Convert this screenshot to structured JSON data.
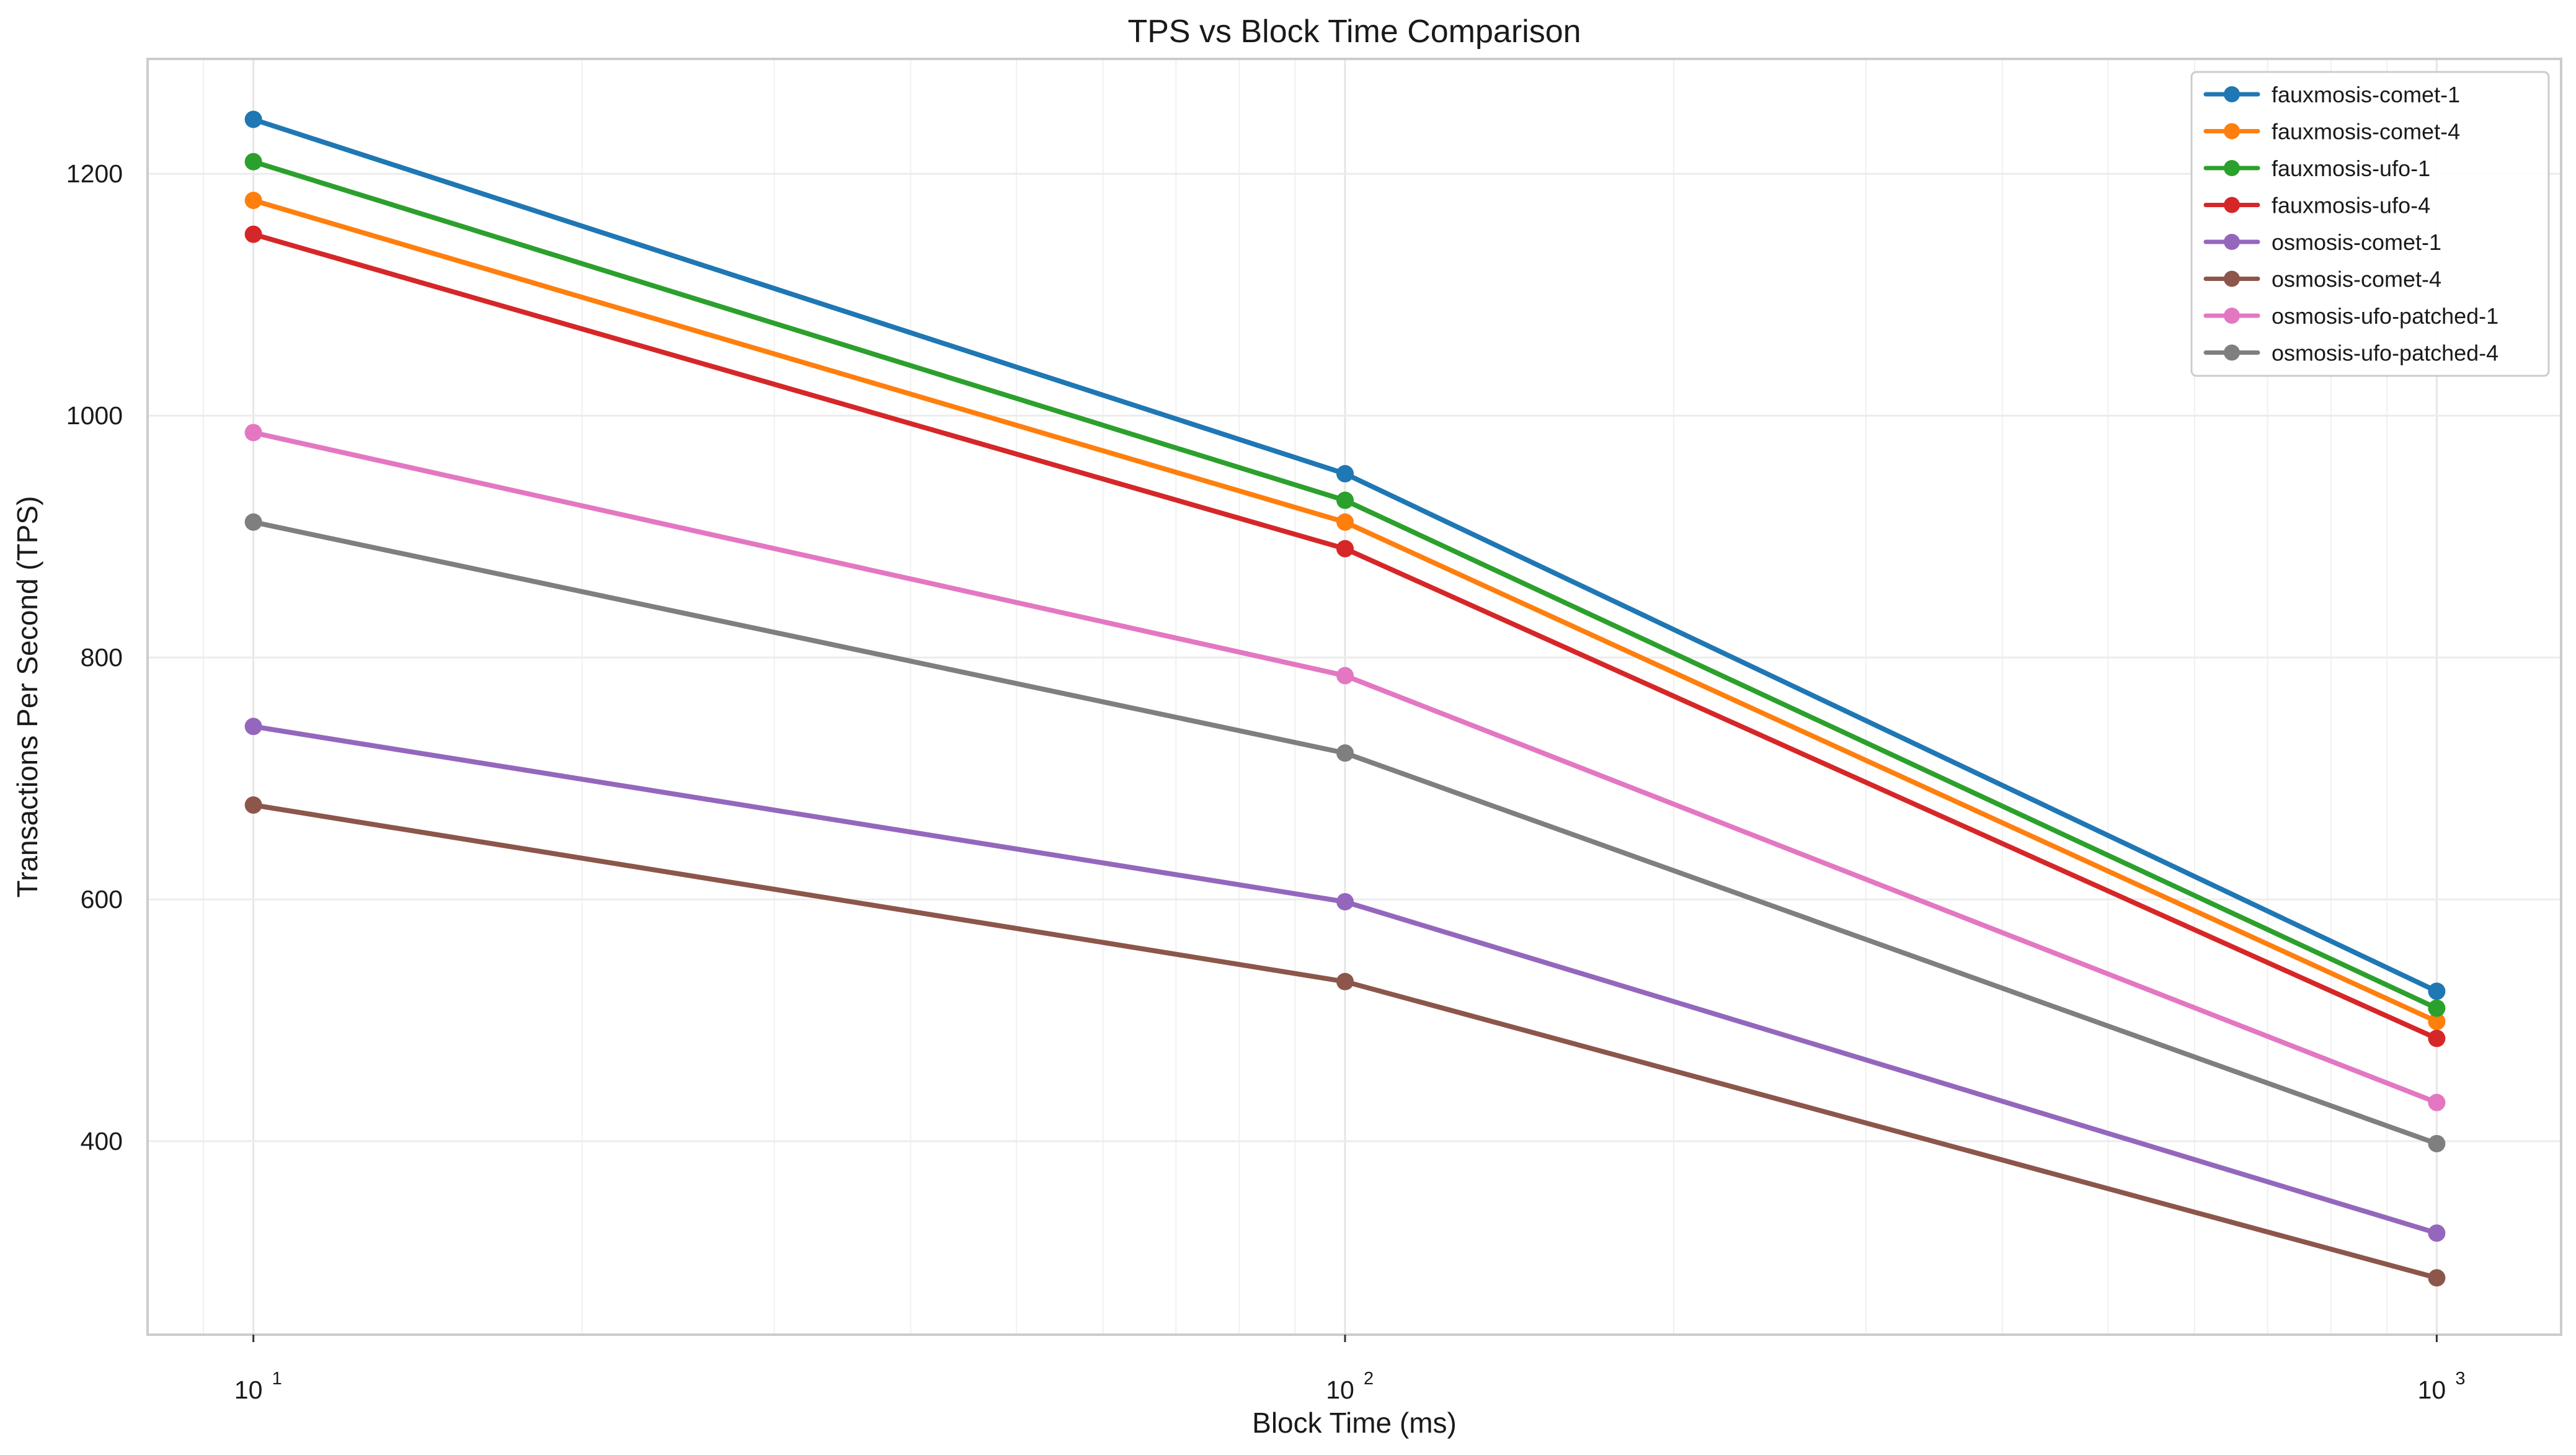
{
  "chart_data": {
    "type": "line",
    "title": "TPS vs Block Time Comparison",
    "xlabel": "Block Time (ms)",
    "ylabel": "Transactions Per Second (TPS)",
    "x_scale": "log",
    "x": [
      10,
      100,
      1000
    ],
    "x_ticks": [
      {
        "value": 10,
        "base": "10",
        "exp": "1"
      },
      {
        "value": 100,
        "base": "10",
        "exp": "2"
      },
      {
        "value": 1000,
        "base": "10",
        "exp": "3"
      }
    ],
    "xlim": [
      8,
      1300
    ],
    "ylim": [
      240,
      1295
    ],
    "y_ticks": [
      400,
      600,
      800,
      1000,
      1200
    ],
    "grid": true,
    "legend_position": "top-right",
    "series": [
      {
        "name": "fauxmosis-comet-1",
        "color": "#1f77b4",
        "values": [
          1245,
          952,
          524
        ]
      },
      {
        "name": "fauxmosis-comet-4",
        "color": "#ff7f0e",
        "values": [
          1178,
          912,
          499
        ]
      },
      {
        "name": "fauxmosis-ufo-1",
        "color": "#2ca02c",
        "values": [
          1210,
          930,
          510
        ]
      },
      {
        "name": "fauxmosis-ufo-4",
        "color": "#d62728",
        "values": [
          1150,
          890,
          485
        ]
      },
      {
        "name": "osmosis-comet-1",
        "color": "#9467bd",
        "values": [
          743,
          598,
          324
        ]
      },
      {
        "name": "osmosis-comet-4",
        "color": "#8c564b",
        "values": [
          678,
          532,
          287
        ]
      },
      {
        "name": "osmosis-ufo-patched-1",
        "color": "#e377c2",
        "values": [
          986,
          785,
          432
        ]
      },
      {
        "name": "osmosis-ufo-patched-4",
        "color": "#7f7f7f",
        "values": [
          912,
          721,
          398
        ]
      }
    ]
  }
}
